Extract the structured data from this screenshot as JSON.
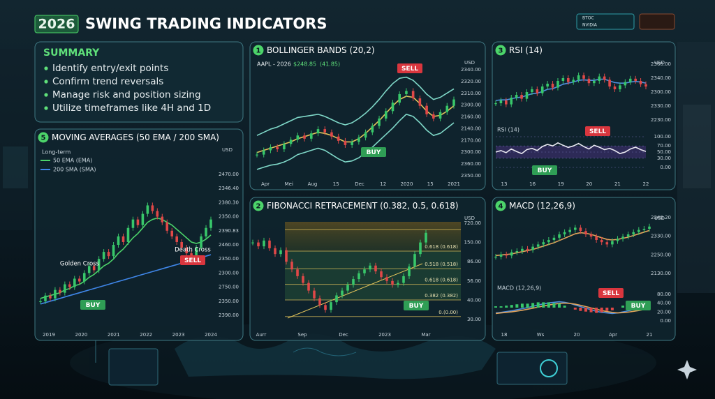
{
  "header": {
    "badge": "2026",
    "title": "SWING TRADING INDICATORS",
    "tickers": [
      "BTOC",
      "NVIDIA"
    ]
  },
  "summary": {
    "title": "SUMMARY",
    "items": [
      "Identify entry/exit points",
      "Confirm trend reversals",
      "Manage risk and position sizing",
      "Utilize timeframes like 4H and 1D"
    ]
  },
  "panels": [
    {
      "number": "1",
      "title": "BOLLINGER BANDS (20,2)",
      "unit": "USD",
      "texts": [
        "AAPL - 2026",
        "$248.85",
        "(41.85)"
      ],
      "x_labels": [
        "Apr",
        "Mei",
        "Aug",
        "15",
        "Dec",
        "12",
        "2020",
        "15",
        "2021"
      ],
      "annotations": [
        {
          "text": "SELL",
          "color": "#d9363e"
        },
        {
          "text": "BUY",
          "color": "#2f9e55"
        }
      ],
      "charts": [
        {
          "type": "line",
          "ylim": [
            0,
            100
          ],
          "axis_labels": [
            "2340.00",
            "2320.00",
            "2310.00",
            "2300.00",
            "2160.00",
            "2140.00",
            "2170.00",
            "2300.00",
            "2360.00",
            "2350.00"
          ],
          "series": [
            {
              "type": "line",
              "color": "#7fd8c8",
              "values": [
                38,
                41,
                44,
                46,
                49,
                52,
                55,
                56,
                57,
                58,
                56,
                53,
                50,
                48,
                50,
                54,
                59,
                65,
                72,
                80,
                87,
                92,
                93,
                90,
                84,
                77,
                72,
                74,
                78,
                82
              ]
            },
            {
              "type": "line",
              "color": "#7fd8c8",
              "values": [
                6,
                8,
                10,
                11,
                13,
                16,
                20,
                22,
                24,
                26,
                24,
                20,
                16,
                13,
                14,
                17,
                22,
                27,
                33,
                39,
                45,
                52,
                58,
                56,
                50,
                43,
                38,
                40,
                45,
                50
              ]
            },
            {
              "type": "line",
              "color": "#e2c35a",
              "values": [
                22,
                24,
                26,
                28,
                30,
                32,
                35,
                37,
                39,
                41,
                40,
                38,
                35,
                32,
                32,
                35,
                40,
                46,
                52,
                59,
                66,
                72,
                75,
                74,
                68,
                61,
                56,
                57,
                61,
                66
              ]
            },
            {
              "type": "candlestick",
              "values": [
                20,
                24,
                27,
                25,
                30,
                34,
                38,
                35,
                40,
                44,
                41,
                37,
                33,
                29,
                32,
                36,
                41,
                47,
                54,
                61,
                69,
                77,
                80,
                73,
                66,
                58,
                54,
                60,
                66,
                72
              ]
            }
          ]
        }
      ]
    },
    {
      "number": "3",
      "title": "RSI (14)",
      "unit": "USD",
      "texts": [
        "RSI (14)"
      ],
      "x_labels": [
        "13",
        "16",
        "19",
        "20",
        "21",
        "22"
      ],
      "annotations": [
        {
          "text": "SELL",
          "color": "#d9363e"
        },
        {
          "text": "BUY",
          "color": "#2f9e55"
        }
      ],
      "charts": [
        {
          "type": "line",
          "ylim": [
            0,
            100
          ],
          "axis_labels": [
            "2360.00",
            "2340.00",
            "2300.00",
            "2330.00",
            "2230.00"
          ],
          "series": [
            {
              "type": "line",
              "color": "#4f8fe0",
              "values": [
                35,
                36,
                36,
                38,
                40,
                41,
                44,
                47,
                48,
                51,
                55,
                56,
                60,
                64,
                66,
                68,
                71,
                72,
                71,
                71,
                73,
                73,
                70,
                67,
                66,
                66,
                68,
                69,
                68,
                66
              ]
            },
            {
              "type": "candlestick",
              "values": [
                30,
                35,
                28,
                40,
                45,
                38,
                50,
                55,
                48,
                60,
                65,
                58,
                70,
                75,
                68,
                72,
                80,
                74,
                66,
                70,
                78,
                72,
                60,
                55,
                62,
                68,
                74,
                70,
                64,
                60
              ]
            }
          ]
        },
        {
          "type": "line",
          "ylim": [
            0,
            100
          ],
          "shade": [
            30,
            70
          ],
          "yticks": [
            {
              "value": 100,
              "label": "100.00"
            },
            {
              "value": 70,
              "label": "70.00"
            },
            {
              "value": 50,
              "label": "50.00"
            },
            {
              "value": 30,
              "label": "30.00"
            },
            {
              "value": 0,
              "label": "0.00"
            }
          ],
          "series": [
            {
              "type": "line",
              "color": "#e8e8f0",
              "values": [
                50,
                55,
                48,
                60,
                52,
                45,
                58,
                62,
                55,
                68,
                75,
                70,
                80,
                72,
                65,
                70,
                78,
                68,
                60,
                72,
                66,
                58,
                62,
                55,
                45,
                50,
                60,
                66,
                58,
                52
              ]
            }
          ]
        }
      ]
    },
    {
      "number": "2",
      "title": "FIBONACCI RETRACEMENT (0.382, 0.5, 0.618)",
      "unit": "USD",
      "texts": [],
      "fib_labels": [
        "0.618 (0.618)",
        "0.518 (0.518)",
        "0.618 (0.618)",
        "0.382 (0.382)",
        "0.(0.00)"
      ],
      "x_labels": [
        "Aurr",
        "Sep",
        "Dec",
        "2023",
        "Mar"
      ],
      "annotations": [
        {
          "text": "BUY",
          "color": "#2f9e55"
        }
      ],
      "charts": [
        {
          "type": "line",
          "ylim": [
            0,
            100
          ],
          "axis_labels": [
            "720.00",
            "150.00",
            "86.00",
            "56.00",
            "40.00",
            "30.00"
          ],
          "series": [
            {
              "type": "candlestick",
              "values": [
                80,
                76,
                82,
                74,
                68,
                72,
                60,
                52,
                45,
                38,
                30,
                22,
                15,
                10,
                18,
                25,
                30,
                36,
                42,
                48,
                52,
                56,
                50,
                44,
                40,
                36,
                38,
                45,
                55,
                68,
                80,
                90
              ]
            }
          ]
        }
      ]
    },
    {
      "number": "4",
      "title": "MACD (12,26,9)",
      "unit": "USD",
      "texts": [
        "MACD (12,26,9)"
      ],
      "x_labels": [
        "18",
        "Ws",
        "20",
        "Apr",
        "21"
      ],
      "annotations": [
        {
          "text": "SELL",
          "color": "#d9363e"
        },
        {
          "text": "BUY",
          "color": "#2f9e55"
        }
      ],
      "charts": [
        {
          "type": "line",
          "ylim": [
            0,
            100
          ],
          "axis_labels": [
            "2340.20",
            "2330.00",
            "2250.00",
            "2130.00"
          ],
          "series": [
            {
              "type": "line",
              "color": "#e2a35a",
              "values": [
                32,
                33,
                34,
                35,
                37,
                39,
                41,
                43,
                46,
                49,
                52,
                55,
                59,
                63,
                67,
                71,
                73,
                72,
                70,
                67,
                64,
                61,
                60,
                61,
                63,
                65,
                68,
                71,
                74,
                77
              ]
            },
            {
              "type": "candlestick",
              "values": [
                30,
                34,
                32,
                38,
                40,
                44,
                42,
                48,
                52,
                56,
                60,
                64,
                70,
                74,
                78,
                82,
                76,
                70,
                66,
                60,
                56,
                52,
                58,
                62,
                66,
                70,
                74,
                78,
                80,
                84
              ]
            }
          ]
        },
        {
          "type": "line",
          "ylim": [
            0,
            100
          ],
          "axis_labels": [
            "80.00",
            "40.00",
            "20.00",
            "0.00"
          ],
          "series": [
            {
              "type": "line",
              "color": "#4f8fe0",
              "values": [
                30,
                32,
                35,
                38,
                42,
                46,
                50,
                55,
                60,
                64,
                68,
                70,
                72,
                70,
                66,
                60,
                54,
                48,
                42,
                36,
                32,
                30,
                28,
                30,
                34,
                38,
                42,
                46,
                50,
                54
              ]
            },
            {
              "type": "line",
              "color": "#e2a35a",
              "values": [
                28,
                30,
                32,
                34,
                37,
                40,
                44,
                48,
                52,
                56,
                60,
                63,
                66,
                67,
                66,
                63,
                59,
                54,
                49,
                44,
                39,
                35,
                32,
                30,
                31,
                33,
                36,
                39,
                43,
                47
              ]
            }
          ]
        },
        {
          "type": "bar",
          "ylim": [
            -20,
            20
          ],
          "series": [
            {
              "type": "bars",
              "values": [
                2,
                2,
                3,
                4,
                5,
                6,
                6,
                7,
                8,
                8,
                8,
                7,
                6,
                3,
                0,
                -3,
                -5,
                -6,
                -7,
                -8,
                -7,
                -5,
                -4,
                0,
                3,
                5,
                6,
                7,
                7,
                7
              ]
            }
          ]
        }
      ]
    },
    {
      "number": "5",
      "title": "MOVING AVERAGES (50 EMA / 200 SMA)",
      "unit": "USD",
      "texts": [
        "Long-term"
      ],
      "x_labels": [
        "2019",
        "2020",
        "2021",
        "2022",
        "2023",
        "2024"
      ],
      "annotations": [
        {
          "text": "Golden Cross"
        },
        {
          "text": "BUY",
          "color": "#2f9e55"
        },
        {
          "text": "Death Cross"
        },
        {
          "text": "SELL",
          "color": "#d9363e"
        }
      ],
      "charts": [
        {
          "type": "line",
          "ylim": [
            0,
            100
          ],
          "axis_labels": [
            "2470.00",
            "2346.40",
            "2380.30",
            "2350.00",
            "2390.83",
            "2460.00",
            "2350.00",
            "2300.00",
            "2750.00",
            "2350.00",
            "2390.00"
          ],
          "series": [
            {
              "name": "50 EMA (EMA)",
              "type": "line",
              "color": "#4cd46a",
              "values": [
                12,
                13,
                14,
                15,
                16,
                18,
                19,
                21,
                22,
                24,
                27,
                29,
                32,
                35,
                37,
                40,
                44,
                47,
                51,
                55,
                58,
                62,
                66,
                68,
                69,
                68,
                66,
                64,
                61,
                58,
                55,
                52,
                51,
                52,
                54,
                57
              ]
            },
            {
              "name": "200 SMA (SMA)",
              "type": "line",
              "color": "#3f86e8",
              "values": [
                8,
                9,
                10,
                11,
                12,
                13,
                14,
                15,
                16,
                17,
                18,
                19,
                20,
                21,
                22,
                23,
                24,
                25,
                26,
                27,
                28,
                29,
                30,
                31,
                32,
                33,
                34,
                35,
                36,
                37,
                38,
                39,
                40,
                41,
                42,
                43
              ]
            },
            {
              "type": "candlestick",
              "values": [
                10,
                14,
                12,
                18,
                16,
                22,
                20,
                26,
                24,
                30,
                35,
                32,
                40,
                45,
                42,
                50,
                56,
                52,
                62,
                68,
                64,
                72,
                78,
                74,
                70,
                66,
                60,
                56,
                52,
                48,
                44,
                40,
                48,
                56,
                62,
                68
              ]
            }
          ]
        }
      ]
    }
  ]
}
